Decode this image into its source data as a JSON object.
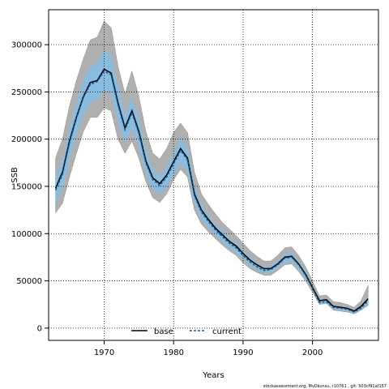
{
  "chart_data": {
    "type": "line",
    "xlabel": "Years",
    "ylabel": "SSB",
    "xlim": [
      1962,
      2009.5
    ],
    "ylim": [
      -13000,
      337000
    ],
    "xticks": [
      1970,
      1980,
      1990,
      2000
    ],
    "yticks": [
      0,
      50000,
      100000,
      150000,
      200000,
      250000,
      300000
    ],
    "grid": true,
    "legend_position": "bottom",
    "x": [
      1963,
      1964,
      1965,
      1966,
      1967,
      1968,
      1969,
      1970,
      1971,
      1972,
      1973,
      1974,
      1975,
      1976,
      1977,
      1978,
      1979,
      1980,
      1981,
      1982,
      1983,
      1984,
      1985,
      1986,
      1987,
      1988,
      1989,
      1990,
      1991,
      1992,
      1993,
      1994,
      1995,
      1996,
      1997,
      1998,
      1999,
      2000,
      2001,
      2002,
      2003,
      2004,
      2005,
      2006,
      2007,
      2008
    ],
    "series": [
      {
        "name": "base",
        "color": "#000000",
        "band_color": "#b0b0b0",
        "values": [
          148000,
          165000,
          198000,
          223000,
          245000,
          260000,
          262000,
          274000,
          270000,
          238000,
          212000,
          230000,
          208000,
          177000,
          159000,
          153000,
          162000,
          176000,
          190000,
          180000,
          142000,
          125000,
          115000,
          106000,
          99000,
          92000,
          87000,
          79000,
          72000,
          67000,
          63000,
          63000,
          68000,
          75000,
          76000,
          68000,
          57000,
          43000,
          29000,
          30000,
          23000,
          22000,
          21000,
          18000,
          23000,
          31000
        ],
        "lower": [
          122000,
          132000,
          160000,
          185000,
          208000,
          223000,
          223000,
          233000,
          230000,
          200000,
          185000,
          198000,
          180000,
          155000,
          138000,
          133000,
          142000,
          157000,
          168000,
          160000,
          125000,
          110000,
          102000,
          95000,
          88000,
          82000,
          77000,
          69000,
          63000,
          59000,
          56000,
          56000,
          61000,
          67000,
          68000,
          60000,
          50000,
          38000,
          25000,
          26000,
          19000,
          18000,
          17000,
          15000,
          19000,
          24000
        ],
        "upper": [
          180000,
          200000,
          235000,
          262000,
          285000,
          305000,
          308000,
          325000,
          318000,
          277000,
          248000,
          272000,
          245000,
          208000,
          185000,
          179000,
          190000,
          207000,
          217000,
          207000,
          165000,
          142000,
          131000,
          121000,
          112000,
          105000,
          98000,
          90000,
          82000,
          76000,
          71000,
          71000,
          77000,
          85000,
          86000,
          77000,
          65000,
          50000,
          34000,
          35000,
          28000,
          27000,
          25000,
          22000,
          29000,
          45000
        ]
      },
      {
        "name": "current",
        "color": "#1a5a8a",
        "band_color": "#89bde0",
        "values": [
          146000,
          163000,
          196000,
          222000,
          244000,
          258000,
          261000,
          272000,
          268000,
          236000,
          210000,
          228000,
          206000,
          175000,
          157000,
          151000,
          160000,
          174000,
          188000,
          178000,
          140000,
          123000,
          113000,
          104000,
          97000,
          90000,
          85000,
          77000,
          70000,
          65000,
          61000,
          62000,
          67000,
          74000,
          75000,
          67000,
          56000,
          42000,
          27000,
          28000,
          22000,
          21000,
          20000,
          17000,
          21000,
          29000
        ],
        "lower": [
          132000,
          148000,
          180000,
          205000,
          226000,
          240000,
          242000,
          252000,
          248000,
          218000,
          196000,
          212000,
          191000,
          163000,
          147000,
          142000,
          150000,
          163000,
          175000,
          166000,
          131000,
          115000,
          107000,
          99000,
          92000,
          86000,
          81000,
          73000,
          66000,
          62000,
          58000,
          59000,
          64000,
          70000,
          71000,
          63000,
          53000,
          40000,
          25000,
          26000,
          20000,
          19000,
          18000,
          16000,
          19000,
          26000
        ],
        "upper": [
          160000,
          178000,
          212000,
          239000,
          262000,
          277000,
          281000,
          294000,
          289000,
          255000,
          225000,
          245000,
          222000,
          188000,
          168000,
          161000,
          171000,
          186000,
          202000,
          191000,
          149000,
          131000,
          120000,
          110000,
          103000,
          95000,
          90000,
          82000,
          75000,
          69000,
          65000,
          66000,
          71000,
          79000,
          80000,
          71000,
          60000,
          45000,
          30000,
          31000,
          24000,
          23000,
          22000,
          19000,
          24000,
          33000
        ]
      }
    ]
  },
  "legend": {
    "items": [
      {
        "label": "base",
        "color": "#000000",
        "dash": "solid"
      },
      {
        "label": "current",
        "color": "#1a5a8a",
        "dash": "dashed"
      }
    ]
  },
  "footnote": "stockassessment.org, MvDkunsu, r10761 , git: 503cf91af157"
}
